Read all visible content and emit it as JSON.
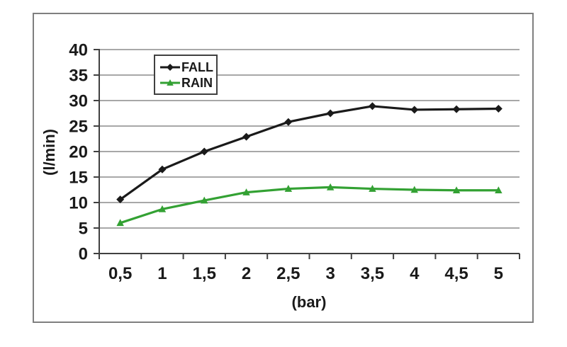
{
  "figure": {
    "background": "#ffffff"
  },
  "colors": {
    "frame_border": "#7f7f7f",
    "axis": "#404040",
    "grid": "#8c8c8c",
    "text": "#1a1a1a"
  },
  "chart_data": {
    "type": "line",
    "title": "",
    "xlabel": "(bar)",
    "ylabel": "(l/min)",
    "categories": [
      "0,5",
      "1",
      "1,5",
      "2",
      "2,5",
      "3",
      "3,5",
      "4",
      "4,5",
      "5"
    ],
    "x_values": [
      0.5,
      1,
      1.5,
      2,
      2.5,
      3,
      3.5,
      4,
      4.5,
      5
    ],
    "ylim": [
      0,
      40
    ],
    "y_ticks": [
      0,
      5,
      10,
      15,
      20,
      25,
      30,
      35,
      40
    ],
    "grid": true,
    "legend_position": "inside-top-left",
    "series": [
      {
        "name": "FALL",
        "color": "#1a1a1a",
        "marker": "diamond",
        "values": [
          10.6,
          16.5,
          20.0,
          22.9,
          25.8,
          27.5,
          28.9,
          28.2,
          28.3,
          28.4
        ]
      },
      {
        "name": "RAIN",
        "color": "#33a133",
        "marker": "triangle-up",
        "values": [
          6.0,
          8.7,
          10.4,
          12.0,
          12.7,
          13.0,
          12.7,
          12.5,
          12.4,
          12.4
        ]
      }
    ]
  }
}
